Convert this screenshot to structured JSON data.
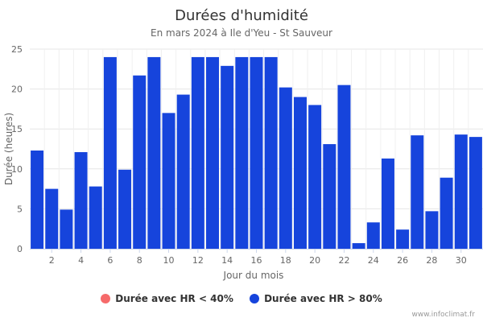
{
  "chart_data": {
    "type": "bar",
    "title": "Durées d'humidité",
    "subtitle": "En mars 2024 à Ile d'Yeu - St Sauveur",
    "xlabel": "Jour du mois",
    "ylabel": "Durée (heures)",
    "ylim": [
      0,
      25
    ],
    "yticks": [
      0,
      5,
      10,
      15,
      20,
      25
    ],
    "xlim": [
      0.5,
      31.5
    ],
    "xticks": [
      2,
      4,
      6,
      8,
      10,
      12,
      14,
      16,
      18,
      20,
      22,
      24,
      26,
      28,
      30
    ],
    "grid": true,
    "legend_position": "bottom",
    "categories": [
      1,
      2,
      3,
      4,
      5,
      6,
      7,
      8,
      9,
      10,
      11,
      12,
      13,
      14,
      15,
      16,
      17,
      18,
      19,
      20,
      21,
      22,
      23,
      24,
      25,
      26,
      27,
      28,
      29,
      30,
      31
    ],
    "series": [
      {
        "name": "Durée avec HR < 40%",
        "color": "#f66a6a",
        "values": [
          0,
          0,
          0,
          0,
          0,
          0,
          0,
          0,
          0,
          0,
          0,
          0,
          0,
          0,
          0,
          0,
          0,
          0,
          0,
          0,
          0,
          0,
          0,
          0,
          0,
          0,
          0,
          0,
          0,
          0,
          0
        ]
      },
      {
        "name": "Durée avec HR > 80%",
        "color": "#1644dc",
        "values": [
          12.3,
          7.5,
          4.9,
          12.1,
          7.8,
          24,
          9.9,
          21.7,
          24,
          17,
          19.3,
          24,
          24,
          22.9,
          24,
          24,
          24,
          20.2,
          19,
          18,
          13.1,
          20.5,
          0.7,
          3.3,
          11.3,
          2.4,
          14.2,
          4.7,
          8.9,
          14.3,
          14
        ]
      }
    ]
  },
  "credit": "www.infoclimat.fr"
}
